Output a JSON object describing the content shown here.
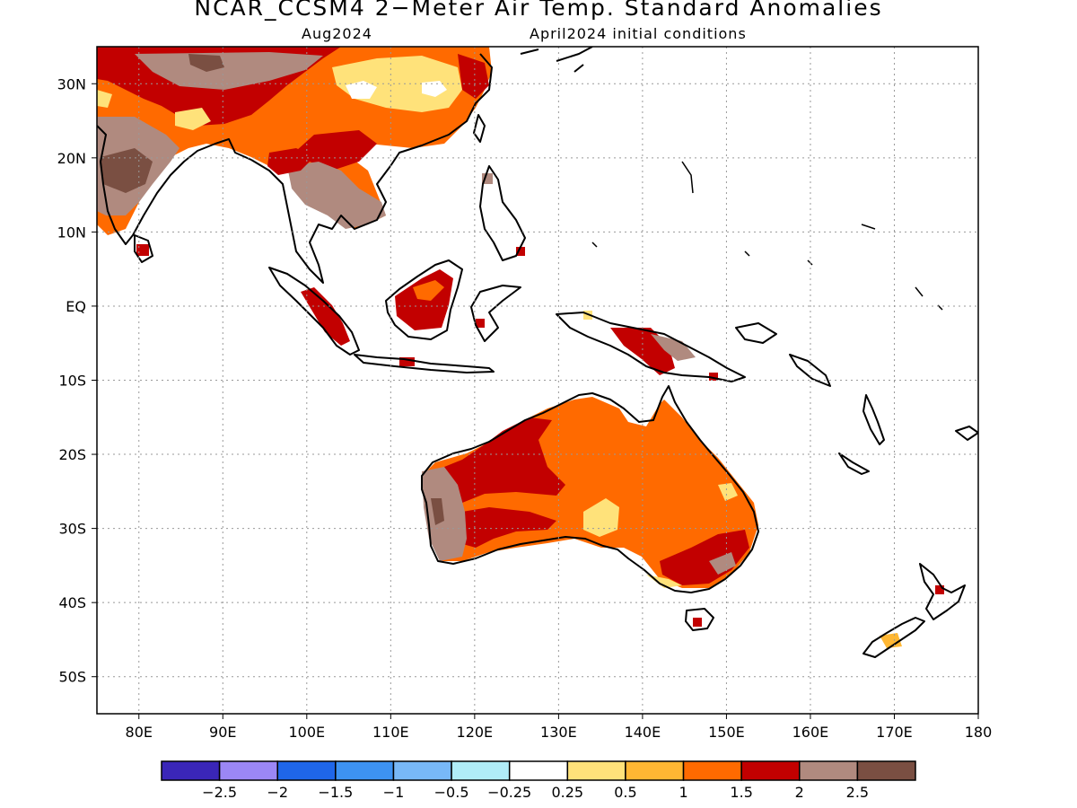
{
  "title": "NCAR_CCSM4 2−Meter Air Temp. Standard Anomalies",
  "subtitle_left": "Aug2024",
  "subtitle_right": "April2024 initial conditions",
  "lat_labels": [
    "30N",
    "20N",
    "10N",
    "EQ",
    "10S",
    "20S",
    "30S",
    "40S",
    "50S"
  ],
  "lat_values": [
    30,
    20,
    10,
    0,
    -10,
    -20,
    -30,
    -40,
    -50
  ],
  "lon_labels": [
    "80E",
    "90E",
    "100E",
    "110E",
    "120E",
    "130E",
    "140E",
    "150E",
    "160E",
    "170E",
    "180"
  ],
  "lon_values": [
    80,
    90,
    100,
    110,
    120,
    130,
    140,
    150,
    160,
    170,
    180
  ],
  "extent": {
    "lon_min": 75,
    "lon_max": 180,
    "lat_min": -55,
    "lat_max": 35
  },
  "colorbar": {
    "colors": [
      "#3a26b8",
      "#9b87f5",
      "#1f66e8",
      "#3d92f2",
      "#78b8f7",
      "#b0ecf7",
      "#ffffff",
      "#ffe27a",
      "#ffb733",
      "#ff6a00",
      "#c20000",
      "#b08a7f",
      "#7a4f42"
    ],
    "tick_labels": [
      "−2.5",
      "−2",
      "−1.5",
      "−1",
      "−0.5",
      "−0.25",
      "0.25",
      "0.5",
      "1",
      "1.5",
      "2",
      "2.5"
    ]
  }
}
